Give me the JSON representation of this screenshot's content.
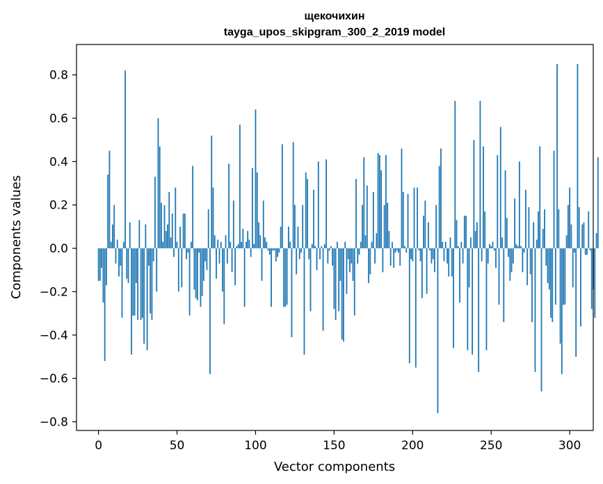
{
  "chart_data": {
    "type": "bar",
    "title_line1": "щекочихин",
    "title_line2": "tayga_upos_skipgram_300_2_2019 model",
    "xlabel": "Vector components",
    "ylabel": "Components values",
    "xlim": [
      -14,
      315
    ],
    "ylim": [
      -0.84,
      0.94
    ],
    "xticks": [
      0,
      50,
      100,
      150,
      200,
      250,
      300
    ],
    "xtick_labels": [
      "0",
      "50",
      "100",
      "150",
      "200",
      "250",
      "300"
    ],
    "yticks": [
      -0.8,
      -0.6,
      -0.4,
      -0.2,
      0.0,
      0.2,
      0.4,
      0.6,
      0.8
    ],
    "ytick_labels": [
      "−0.8",
      "−0.6",
      "−0.4",
      "−0.2",
      "0.0",
      "0.2",
      "0.4",
      "0.6",
      "0.8"
    ],
    "bar_color": "#1f77b4",
    "x_start": 0,
    "values": [
      -0.15,
      -0.15,
      -0.09,
      -0.25,
      -0.52,
      -0.17,
      0.34,
      0.45,
      0.03,
      0.11,
      0.2,
      -0.07,
      0.04,
      -0.13,
      -0.08,
      -0.32,
      0.03,
      0.82,
      -0.14,
      -0.16,
      0.12,
      -0.49,
      -0.31,
      -0.31,
      -0.16,
      -0.33,
      0.13,
      -0.33,
      -0.32,
      -0.44,
      0.11,
      -0.47,
      -0.08,
      -0.3,
      -0.33,
      -0.06,
      0.33,
      -0.2,
      0.6,
      0.47,
      0.21,
      0.03,
      0.2,
      0.08,
      0.11,
      0.26,
      0.05,
      0.16,
      -0.04,
      0.28,
      0.03,
      -0.2,
      0.1,
      -0.18,
      0.16,
      0.16,
      -0.05,
      -0.02,
      -0.31,
      0.03,
      0.38,
      -0.19,
      -0.23,
      -0.24,
      -0.02,
      -0.27,
      -0.22,
      -0.15,
      -0.06,
      -0.1,
      0.18,
      -0.58,
      0.52,
      0.28,
      0.06,
      -0.14,
      0.04,
      -0.07,
      0.03,
      -0.2,
      -0.35,
      0.06,
      -0.07,
      0.39,
      0.03,
      -0.11,
      0.22,
      -0.17,
      0.01,
      0.02,
      0.57,
      0.03,
      0.09,
      -0.27,
      0.03,
      0.08,
      0.04,
      -0.04,
      0.37,
      0.02,
      0.64,
      0.35,
      0.12,
      0.06,
      -0.15,
      0.22,
      0.05,
      0.03,
      -0.01,
      -0.03,
      -0.27,
      -0.01,
      -0.01,
      -0.06,
      -0.04,
      -0.02,
      0.1,
      0.48,
      -0.27,
      -0.27,
      -0.26,
      0.1,
      0.03,
      -0.41,
      0.49,
      0.2,
      -0.12,
      0.1,
      -0.05,
      -0.02,
      0.2,
      -0.49,
      0.35,
      0.32,
      -0.05,
      -0.29,
      0.02,
      0.27,
      0.01,
      -0.1,
      0.4,
      -0.05,
      0.01,
      -0.38,
      0.02,
      0.41,
      -0.07,
      -0.01,
      0.01,
      -0.08,
      -0.28,
      -0.33,
      0.03,
      -0.29,
      -0.15,
      -0.42,
      -0.43,
      0.03,
      -0.21,
      -0.05,
      -0.11,
      -0.07,
      -0.15,
      -0.31,
      0.32,
      -0.07,
      -0.03,
      0.03,
      0.2,
      0.42,
      0.06,
      0.29,
      -0.16,
      -0.12,
      0.03,
      0.26,
      -0.07,
      0.07,
      0.44,
      0.43,
      0.36,
      -0.11,
      0.2,
      0.43,
      0.21,
      0.08,
      -0.08,
      0.03,
      -0.09,
      -0.02,
      -0.01,
      -0.02,
      -0.08,
      0.46,
      0.26,
      0.01,
      -0.02,
      0.25,
      -0.53,
      -0.05,
      -0.06,
      0.28,
      -0.55,
      0.28,
      -0.01,
      -0.06,
      -0.23,
      0.15,
      0.22,
      -0.21,
      0.12,
      -0.01,
      -0.07,
      -0.05,
      -0.11,
      0.2,
      -0.76,
      0.38,
      0.46,
      0.03,
      -0.06,
      0.03,
      -0.07,
      -0.13,
      0.05,
      -0.13,
      -0.46,
      0.68,
      0.13,
      0.01,
      -0.25,
      0.03,
      -0.07,
      0.15,
      0.15,
      -0.47,
      -0.18,
      0.05,
      -0.49,
      0.5,
      0.08,
      0.12,
      -0.57,
      0.68,
      -0.06,
      0.47,
      0.17,
      -0.47,
      -0.07,
      0.02,
      0.01,
      0.03,
      -0.01,
      -0.09,
      0.43,
      -0.26,
      0.56,
      0.05,
      -0.34,
      0.36,
      0.14,
      -0.04,
      -0.15,
      -0.11,
      -0.07,
      0.23,
      0.02,
      0.01,
      0.4,
      0.01,
      -0.11,
      -0.02,
      0.27,
      -0.17,
      0.19,
      -0.12,
      -0.34,
      0.12,
      -0.57,
      0.04,
      0.17,
      0.47,
      -0.66,
      0.09,
      0.18,
      -0.08,
      -0.16,
      -0.19,
      -0.32,
      -0.34,
      0.45,
      -0.26,
      0.85,
      0.18,
      -0.44,
      -0.58,
      -0.26,
      -0.26,
      0.06,
      0.2,
      0.28,
      0.11,
      -0.18,
      -0.02,
      -0.5,
      0.85,
      0.19,
      -0.36,
      0.11,
      0.12,
      -0.03,
      -0.03,
      0.17,
      -0.01,
      -0.28,
      -0.19,
      -0.32,
      0.07,
      0.42
    ]
  }
}
